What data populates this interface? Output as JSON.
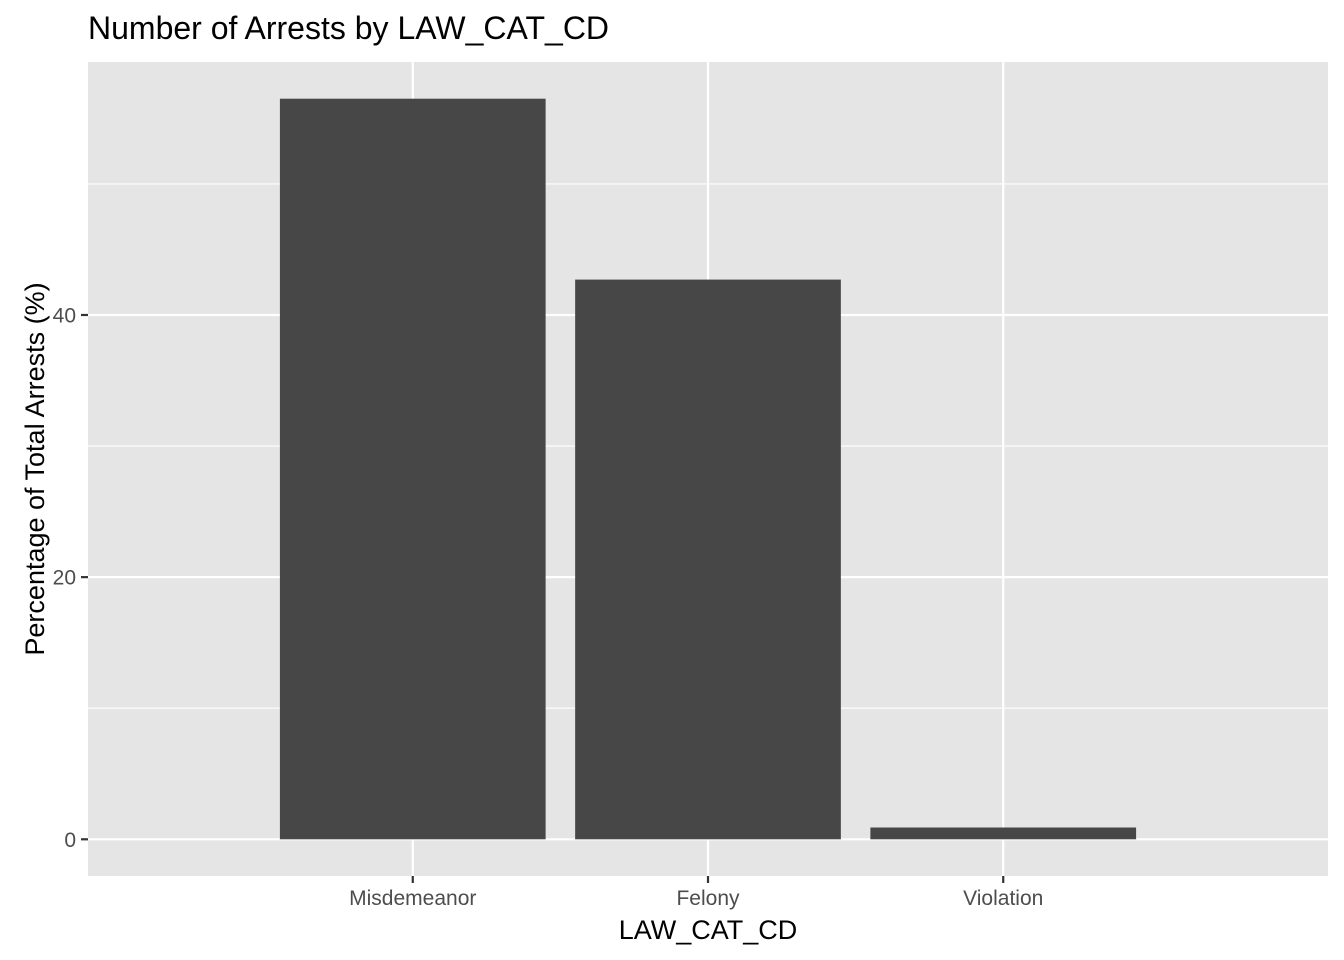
{
  "chart_data": {
    "type": "bar",
    "title": "Number of Arrests by LAW_CAT_CD",
    "xlabel": "LAW_CAT_CD",
    "ylabel": "Percentage of Total Arrests (%)",
    "categories": [
      "Misdemeanor",
      "Felony",
      "Violation"
    ],
    "values": [
      56.5,
      42.7,
      0.9
    ],
    "ylim": [
      -2.8,
      59.3
    ],
    "y_ticks": [
      0,
      20,
      40
    ],
    "y_tick_labels": [
      "0",
      "20",
      "40"
    ],
    "y_minor_ticks": [
      10,
      30,
      50
    ],
    "grid": true,
    "legend": "none",
    "colors": {
      "bar": "#474747",
      "panel_background": "#e5e5e5",
      "grid": "#ffffff",
      "tick_text": "#4d4d4d",
      "axis_tick": "#333333"
    }
  }
}
